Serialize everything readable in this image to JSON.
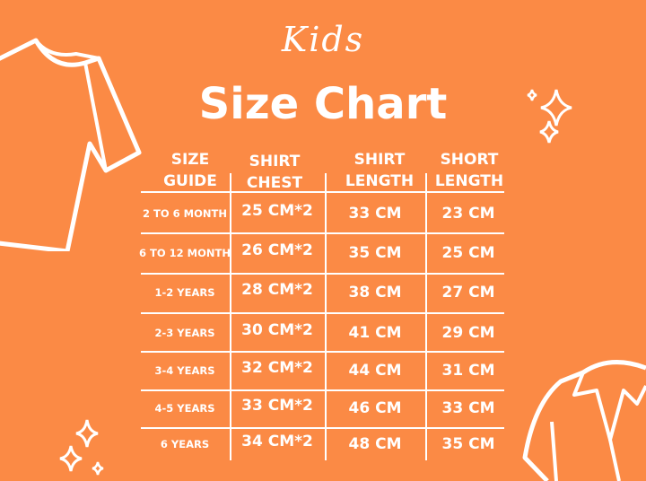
{
  "subtitle": "Kids",
  "title": "Size Chart",
  "colors": {
    "background": "#fb8a45",
    "foreground": "#ffffff"
  },
  "icons": [
    "tshirt-icon",
    "polo-shirt-icon",
    "sparkle-icon"
  ],
  "table": {
    "headers": [
      [
        "SIZE",
        "GUIDE"
      ],
      [
        "SHIRT",
        "CHEST"
      ],
      [
        "SHIRT",
        "LENGTH"
      ],
      [
        "SHORT",
        "LENGTH"
      ]
    ],
    "rows": [
      [
        "2 TO 6 MONTH",
        "25 CM*2",
        "33 CM",
        "23 CM"
      ],
      [
        "6 TO 12 MONTH",
        "26 CM*2",
        "35 CM",
        "25 CM"
      ],
      [
        "1-2 YEARS",
        "28 CM*2",
        "38 CM",
        "27 CM"
      ],
      [
        "2-3 YEARS",
        "30 CM*2",
        "41 CM",
        "29 CM"
      ],
      [
        "3-4 YEARS",
        "32 CM*2",
        "44 CM",
        "31 CM"
      ],
      [
        "4-5 YEARS",
        "33 CM*2",
        "46 CM",
        "33 CM"
      ],
      [
        "6 YEARS",
        "34 CM*2",
        "48 CM",
        "35 CM"
      ]
    ]
  }
}
